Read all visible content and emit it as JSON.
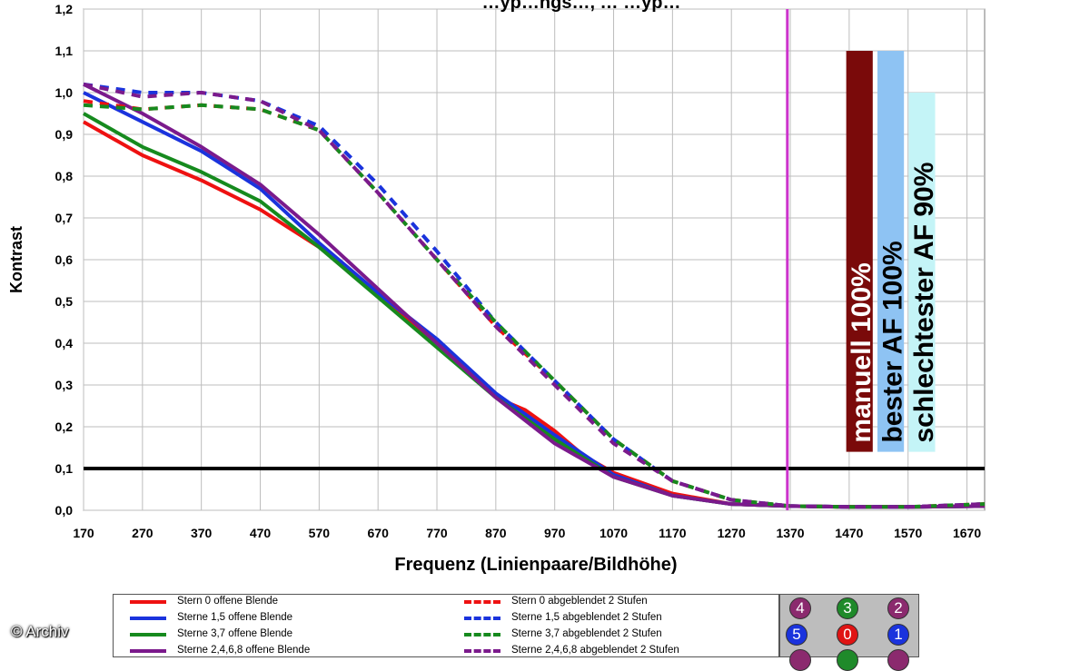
{
  "chart_data": {
    "type": "line",
    "title": "…yp…ngs…, … …yp…",
    "xlabel": "Frequenz (Linienpaare/Bildhöhe)",
    "ylabel": "Kontrast",
    "xlim": [
      170,
      1700
    ],
    "ylim": [
      0,
      1.2
    ],
    "xticks": [
      "170",
      "270",
      "370",
      "470",
      "570",
      "670",
      "770",
      "870",
      "970",
      "1070",
      "1170",
      "1270",
      "1370",
      "1470",
      "1570",
      "1670"
    ],
    "yticks": [
      "0,0",
      "0,1",
      "0,2",
      "0,3",
      "0,4",
      "0,5",
      "0,6",
      "0,7",
      "0,8",
      "0,9",
      "1,0",
      "1,1",
      "1,2"
    ],
    "grid": true,
    "reference_line": {
      "y": 0.1,
      "color": "#000000"
    },
    "marker_line": {
      "x": 1365,
      "color": "#cc33cc"
    },
    "series": [
      {
        "name": "Stern 0 offene Blende",
        "color": "#ee1111",
        "dashed": false,
        "points": [
          [
            170,
            0.93
          ],
          [
            270,
            0.85
          ],
          [
            370,
            0.79
          ],
          [
            470,
            0.72
          ],
          [
            570,
            0.63
          ],
          [
            670,
            0.52
          ],
          [
            770,
            0.4
          ],
          [
            870,
            0.27
          ],
          [
            920,
            0.24
          ],
          [
            970,
            0.19
          ],
          [
            1020,
            0.13
          ],
          [
            1070,
            0.09
          ],
          [
            1170,
            0.04
          ],
          [
            1270,
            0.015
          ],
          [
            1370,
            0.01
          ],
          [
            1470,
            0.008
          ],
          [
            1570,
            0.008
          ],
          [
            1700,
            0.01
          ]
        ]
      },
      {
        "name": "Sterne 1,5 offene Blende",
        "color": "#1a33dd",
        "dashed": false,
        "points": [
          [
            170,
            1.0
          ],
          [
            270,
            0.93
          ],
          [
            370,
            0.86
          ],
          [
            470,
            0.77
          ],
          [
            570,
            0.64
          ],
          [
            670,
            0.52
          ],
          [
            770,
            0.41
          ],
          [
            870,
            0.28
          ],
          [
            970,
            0.18
          ],
          [
            1070,
            0.085
          ],
          [
            1170,
            0.035
          ],
          [
            1270,
            0.015
          ],
          [
            1370,
            0.01
          ],
          [
            1470,
            0.008
          ],
          [
            1570,
            0.008
          ],
          [
            1700,
            0.01
          ]
        ]
      },
      {
        "name": "Sterne 3,7 offene Blende",
        "color": "#168a1e",
        "dashed": false,
        "points": [
          [
            170,
            0.95
          ],
          [
            270,
            0.87
          ],
          [
            370,
            0.81
          ],
          [
            470,
            0.74
          ],
          [
            570,
            0.63
          ],
          [
            670,
            0.51
          ],
          [
            770,
            0.39
          ],
          [
            870,
            0.27
          ],
          [
            970,
            0.17
          ],
          [
            1070,
            0.08
          ],
          [
            1170,
            0.035
          ],
          [
            1270,
            0.015
          ],
          [
            1370,
            0.01
          ],
          [
            1470,
            0.008
          ],
          [
            1570,
            0.008
          ],
          [
            1700,
            0.01
          ]
        ]
      },
      {
        "name": "Sterne 2,4,6,8 offene Blende",
        "color": "#7b1a8c",
        "dashed": false,
        "points": [
          [
            170,
            1.02
          ],
          [
            270,
            0.95
          ],
          [
            370,
            0.87
          ],
          [
            470,
            0.78
          ],
          [
            570,
            0.66
          ],
          [
            670,
            0.53
          ],
          [
            770,
            0.4
          ],
          [
            870,
            0.27
          ],
          [
            970,
            0.16
          ],
          [
            1070,
            0.08
          ],
          [
            1170,
            0.035
          ],
          [
            1270,
            0.015
          ],
          [
            1370,
            0.01
          ],
          [
            1470,
            0.008
          ],
          [
            1570,
            0.008
          ],
          [
            1700,
            0.01
          ]
        ]
      },
      {
        "name": "Stern 0 abgeblendet 2 Stufen",
        "color": "#ee1111",
        "dashed": true,
        "points": [
          [
            170,
            0.98
          ],
          [
            270,
            0.96
          ],
          [
            370,
            0.97
          ],
          [
            470,
            0.96
          ],
          [
            570,
            0.91
          ],
          [
            670,
            0.76
          ],
          [
            770,
            0.6
          ],
          [
            870,
            0.44
          ],
          [
            970,
            0.31
          ],
          [
            1070,
            0.17
          ],
          [
            1170,
            0.07
          ],
          [
            1270,
            0.025
          ],
          [
            1370,
            0.01
          ],
          [
            1470,
            0.008
          ],
          [
            1570,
            0.008
          ],
          [
            1700,
            0.015
          ]
        ]
      },
      {
        "name": "Sterne 1,5 abgeblendet 2 Stufen",
        "color": "#1a33dd",
        "dashed": true,
        "points": [
          [
            170,
            1.02
          ],
          [
            270,
            1.0
          ],
          [
            370,
            1.0
          ],
          [
            470,
            0.98
          ],
          [
            570,
            0.92
          ],
          [
            670,
            0.78
          ],
          [
            770,
            0.62
          ],
          [
            870,
            0.45
          ],
          [
            970,
            0.31
          ],
          [
            1070,
            0.17
          ],
          [
            1170,
            0.07
          ],
          [
            1270,
            0.025
          ],
          [
            1370,
            0.01
          ],
          [
            1470,
            0.008
          ],
          [
            1570,
            0.008
          ],
          [
            1700,
            0.015
          ]
        ]
      },
      {
        "name": "Sterne 3,7 abgeblendet 2 Stufen",
        "color": "#168a1e",
        "dashed": true,
        "points": [
          [
            170,
            0.97
          ],
          [
            270,
            0.96
          ],
          [
            370,
            0.97
          ],
          [
            470,
            0.96
          ],
          [
            570,
            0.91
          ],
          [
            670,
            0.76
          ],
          [
            770,
            0.6
          ],
          [
            870,
            0.45
          ],
          [
            970,
            0.31
          ],
          [
            1070,
            0.17
          ],
          [
            1170,
            0.07
          ],
          [
            1270,
            0.025
          ],
          [
            1370,
            0.01
          ],
          [
            1470,
            0.008
          ],
          [
            1570,
            0.008
          ],
          [
            1700,
            0.015
          ]
        ]
      },
      {
        "name": "Sterne 2,4,6,8 abgeblendet 2 Stufen",
        "color": "#7b1a8c",
        "dashed": true,
        "points": [
          [
            170,
            1.02
          ],
          [
            270,
            0.99
          ],
          [
            370,
            1.0
          ],
          [
            470,
            0.98
          ],
          [
            570,
            0.91
          ],
          [
            670,
            0.76
          ],
          [
            770,
            0.6
          ],
          [
            870,
            0.44
          ],
          [
            970,
            0.3
          ],
          [
            1070,
            0.16
          ],
          [
            1170,
            0.07
          ],
          [
            1270,
            0.025
          ],
          [
            1370,
            0.01
          ],
          [
            1470,
            0.008
          ],
          [
            1570,
            0.008
          ],
          [
            1700,
            0.015
          ]
        ]
      }
    ],
    "annotation_bars": [
      {
        "label": "manuell 100%",
        "value": 1.1,
        "x_from": 1465,
        "x_to": 1510,
        "color": "#7a0a0a"
      },
      {
        "label": "bester AF 100%",
        "value": 1.1,
        "x_from": 1518,
        "x_to": 1563,
        "color": "#8ec3f3"
      },
      {
        "label": "schlechtester AF 90%",
        "value": 1.0,
        "x_from": 1571,
        "x_to": 1616,
        "color": "#c4f4f7"
      }
    ]
  },
  "legend": {
    "items": [
      {
        "label": "Stern 0 offene Blende",
        "color": "#ee1111",
        "dashed": false
      },
      {
        "label": "Sterne 1,5 offene Blende",
        "color": "#1a33dd",
        "dashed": false
      },
      {
        "label": "Sterne 3,7 offene Blende",
        "color": "#168a1e",
        "dashed": false
      },
      {
        "label": "Sterne 2,4,6,8 offene Blende",
        "color": "#7b1a8c",
        "dashed": false
      },
      {
        "label": "Stern 0 abgeblendet 2 Stufen",
        "color": "#ee1111",
        "dashed": true
      },
      {
        "label": "Sterne 1,5 abgeblendet 2 Stufen",
        "color": "#1a33dd",
        "dashed": true
      },
      {
        "label": "Sterne 3,7 abgeblendet 2 Stufen",
        "color": "#168a1e",
        "dashed": true
      },
      {
        "label": "Sterne 2,4,6,8 abgeblendet 2 Stufen",
        "color": "#7b1a8c",
        "dashed": true
      }
    ]
  },
  "star_positions": {
    "dots": [
      {
        "label": "4",
        "color": "#8b2a6e"
      },
      {
        "label": "3",
        "color": "#1f8a2a"
      },
      {
        "label": "2",
        "color": "#8b2a6e"
      },
      {
        "label": "5",
        "color": "#1a33dd"
      },
      {
        "label": "0",
        "color": "#e01414"
      },
      {
        "label": "1",
        "color": "#1a33dd"
      },
      {
        "label": "",
        "color": "#8b2a6e"
      },
      {
        "label": "",
        "color": "#1f8a2a"
      },
      {
        "label": "",
        "color": "#8b2a6e"
      }
    ]
  },
  "credit": "© Archiv"
}
